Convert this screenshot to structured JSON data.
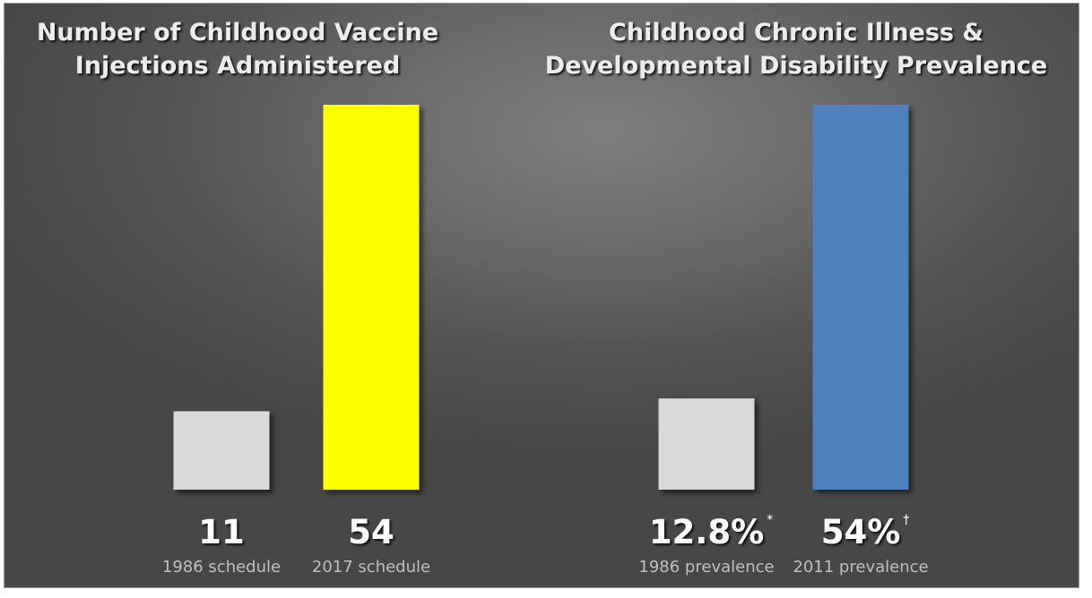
{
  "chart_data": [
    {
      "type": "bar",
      "title_lines": [
        "Number of Childhood Vaccine",
        "Injections Administered"
      ],
      "categories": [
        "1986 schedule",
        "2017 schedule"
      ],
      "values": [
        11,
        54
      ],
      "value_labels": [
        "11",
        "54"
      ],
      "value_marks": [
        "",
        ""
      ],
      "colors": [
        "#d9d9d9",
        "#ffff00"
      ],
      "ylim": [
        0,
        54
      ],
      "grid": false,
      "xlabel": "",
      "ylabel": ""
    },
    {
      "type": "bar",
      "title_lines": [
        "Childhood Chronic Illness &",
        "Developmental Disability Prevalence"
      ],
      "categories": [
        "1986 prevalence",
        "2011 prevalence"
      ],
      "values": [
        12.8,
        54
      ],
      "value_labels": [
        "12.8%",
        "54%"
      ],
      "value_marks": [
        "*",
        "†"
      ],
      "colors": [
        "#d9d9d9",
        "#4f81bd"
      ],
      "ylim": [
        0,
        54
      ],
      "grid": false,
      "xlabel": "",
      "ylabel": ""
    }
  ]
}
